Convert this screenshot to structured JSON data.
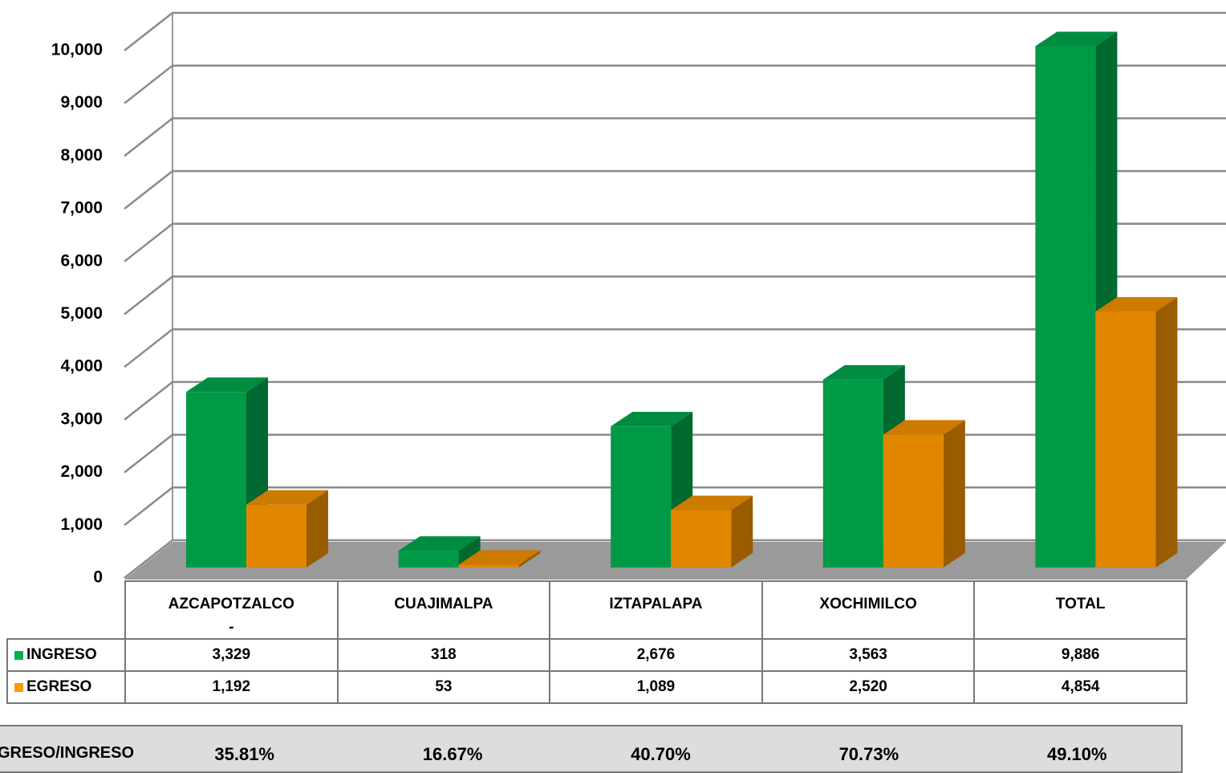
{
  "chart_data": {
    "type": "bar3d",
    "categories": [
      "AZCAPOTZALCO\n-",
      "CUAJIMALPA",
      "IZTAPALAPA",
      "XOCHIMILCO",
      "TOTAL"
    ],
    "series": [
      {
        "name": "INGRESO",
        "color": "#00b050",
        "values": [
          3329,
          318,
          2676,
          3563,
          9886
        ],
        "value_labels": [
          "3,329",
          "318",
          "2,676",
          "3,563",
          "9,886"
        ]
      },
      {
        "name": "EGRESO",
        "color": "#ff9900",
        "values": [
          1192,
          53,
          1089,
          2520,
          4854
        ],
        "value_labels": [
          "1,192",
          "53",
          "1,089",
          "2,520",
          "4,854"
        ]
      }
    ],
    "ylim": [
      0,
      10000
    ],
    "yticks": [
      0,
      {
        "value": 1000,
        "label": "1,000"
      },
      {
        "value": 2000,
        "label": "2,000"
      },
      {
        "value": 3000,
        "label": "3,000"
      },
      {
        "value": 4000,
        "label": "4,000"
      },
      {
        "value": 5000,
        "label": "5,000"
      },
      {
        "value": 6000,
        "label": "6,000"
      },
      {
        "value": 7000,
        "label": "7,000"
      },
      {
        "value": 8000,
        "label": "8,000"
      },
      {
        "value": 9000,
        "label": "9,000"
      },
      {
        "value": 10000,
        "label": "10,000"
      }
    ],
    "grid": true,
    "ratio": {
      "name": "EGRESO/INGRESO",
      "values": [
        35.81,
        16.67,
        40.7,
        70.73,
        49.1
      ],
      "value_labels": [
        "35.81%",
        "16.67%",
        "40.70%",
        "70.73%",
        "49.10%"
      ]
    }
  }
}
